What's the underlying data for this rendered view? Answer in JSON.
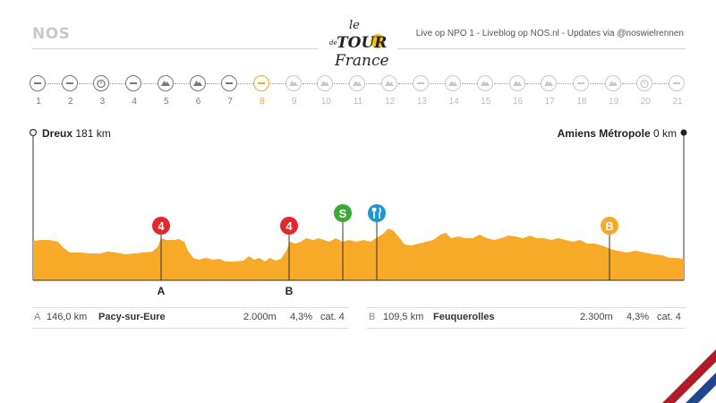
{
  "header": {
    "logo_text": "NOS",
    "info": "Live op NPO 1 - Liveblog op NOS.nl - Updates via @noswielrennen",
    "tdf_logo": {
      "le": "le",
      "tour": "TOUR",
      "de": "de",
      "france": "France"
    }
  },
  "stages": {
    "current": 8,
    "items": [
      {
        "number": "1",
        "icon": "flat-icon",
        "status": "past"
      },
      {
        "number": "2",
        "icon": "flat-icon",
        "status": "past"
      },
      {
        "number": "3",
        "icon": "time-trial-icon",
        "status": "past"
      },
      {
        "number": "4",
        "icon": "flat-icon",
        "status": "past"
      },
      {
        "number": "5",
        "icon": "hilly-icon",
        "status": "past"
      },
      {
        "number": "6",
        "icon": "hilly-icon",
        "status": "past"
      },
      {
        "number": "7",
        "icon": "flat-icon",
        "status": "past"
      },
      {
        "number": "8",
        "icon": "flat-icon",
        "status": "current"
      },
      {
        "number": "9",
        "icon": "mountain-icon",
        "status": "future"
      },
      {
        "number": "10",
        "icon": "mountain-icon",
        "status": "future"
      },
      {
        "number": "11",
        "icon": "mountain-icon",
        "status": "future"
      },
      {
        "number": "12",
        "icon": "mountain-icon",
        "status": "future"
      },
      {
        "number": "13",
        "icon": "flat-icon",
        "status": "future"
      },
      {
        "number": "14",
        "icon": "mountain-icon",
        "status": "future"
      },
      {
        "number": "15",
        "icon": "mountain-icon",
        "status": "future"
      },
      {
        "number": "16",
        "icon": "mountain-icon",
        "status": "future"
      },
      {
        "number": "17",
        "icon": "mountain-icon",
        "status": "future"
      },
      {
        "number": "18",
        "icon": "flat-icon",
        "status": "future"
      },
      {
        "number": "19",
        "icon": "mountain-icon",
        "status": "future"
      },
      {
        "number": "20",
        "icon": "time-trial-icon",
        "status": "future"
      },
      {
        "number": "21",
        "icon": "flat-icon",
        "status": "future"
      }
    ]
  },
  "profile": {
    "start": {
      "name": "Dreux",
      "distance": "181 km"
    },
    "finish": {
      "name": "Amiens Métropole",
      "distance": "0 km"
    },
    "color": "#f7a928",
    "markers": [
      {
        "type": "climb",
        "badge": "4",
        "label": "A",
        "color": "#e5262b"
      },
      {
        "type": "climb",
        "badge": "4",
        "label": "B",
        "color": "#e5262b"
      },
      {
        "type": "sprint",
        "badge": "S",
        "label": "",
        "color": "#3aaa35"
      },
      {
        "type": "feed",
        "badge": "",
        "label": "",
        "color": "#1d96d3"
      },
      {
        "type": "bonus",
        "badge": "B",
        "label": "",
        "color": "#f7a928"
      }
    ]
  },
  "climbs": [
    {
      "letter": "A",
      "km": "146,0 km",
      "name": "Pacy-sur-Eure",
      "length": "2.000m",
      "gradient": "4,3%",
      "category": "cat. 4"
    },
    {
      "letter": "B",
      "km": "109,5 km",
      "name": "Feuquerolles",
      "length": "2.300m",
      "gradient": "4,3%",
      "category": "cat. 4"
    }
  ]
}
